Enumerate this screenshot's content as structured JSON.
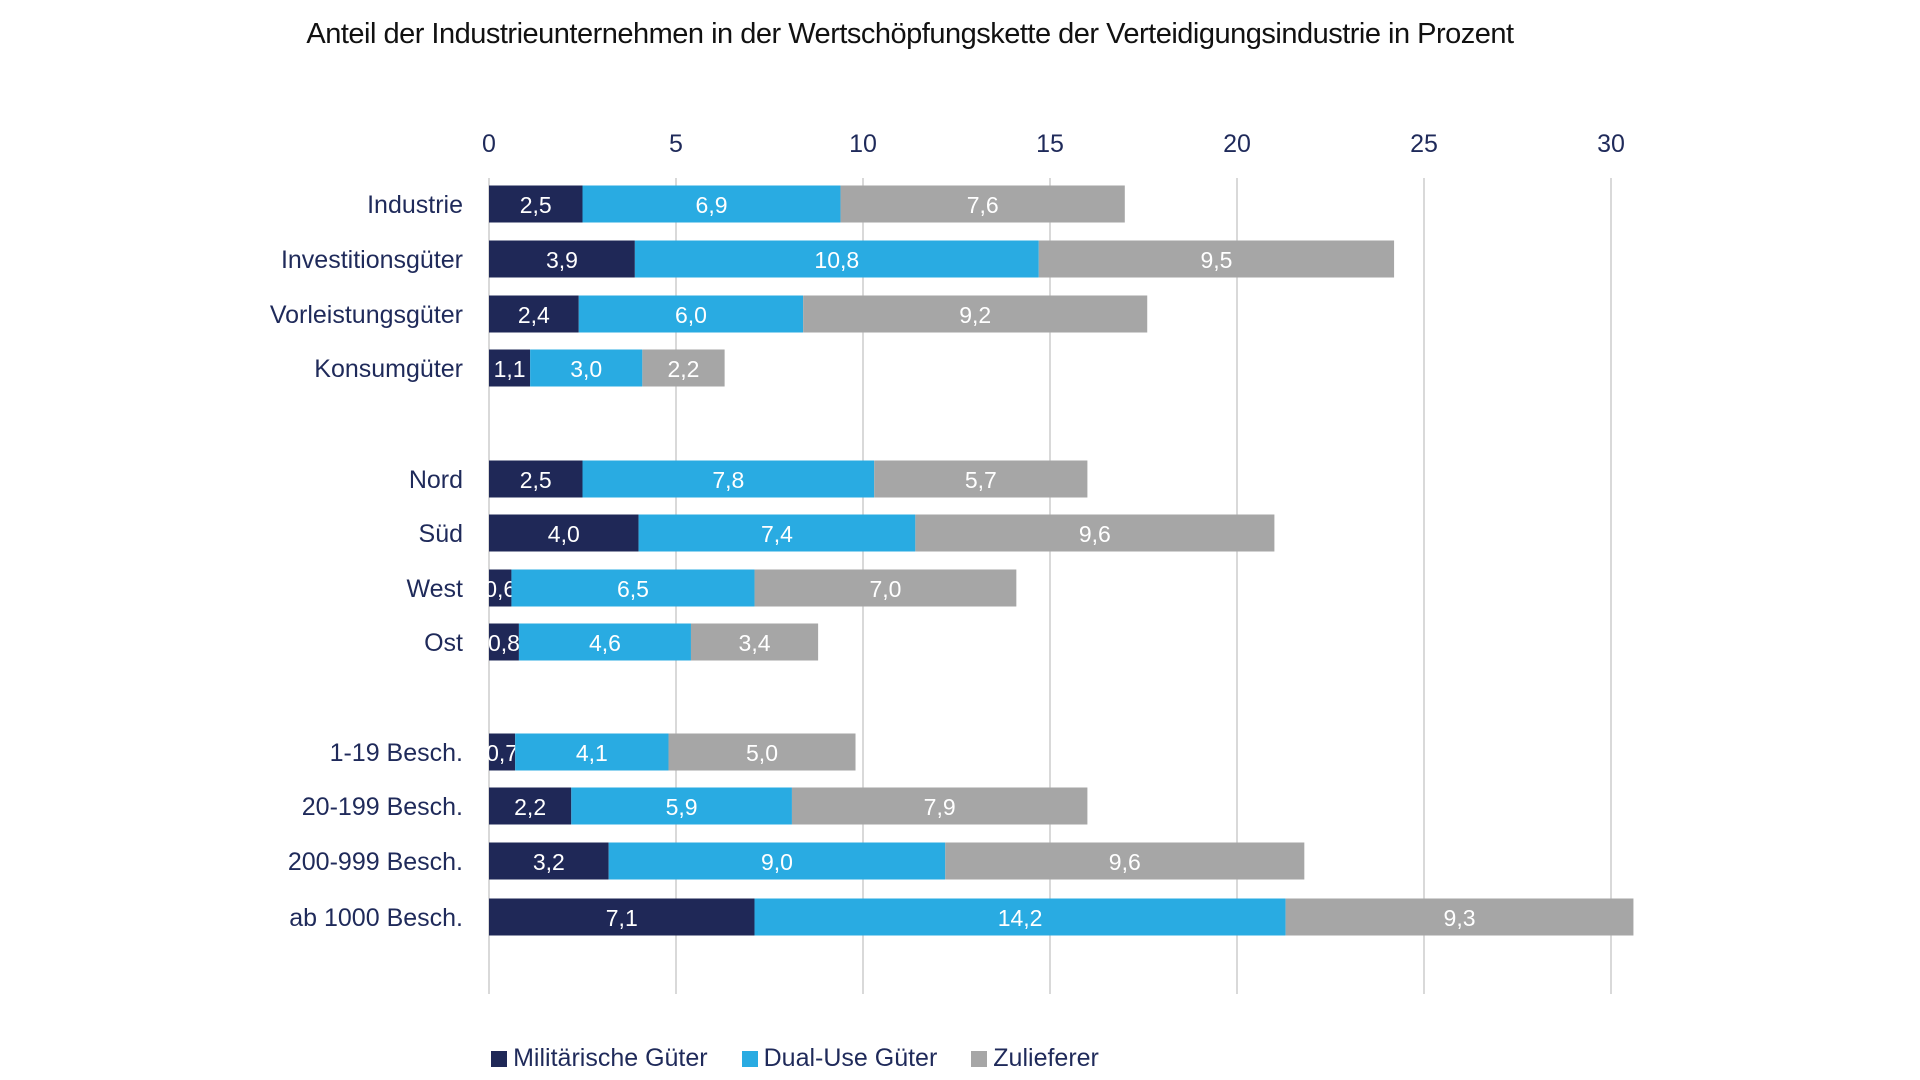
{
  "chart_data": {
    "type": "bar",
    "orientation": "horizontal",
    "stacked": true,
    "title": "Anteil der Industrieunternehmen in der Wertschöpfungskette der Verteidigungsindustrie in Prozent",
    "categories": [
      "Industrie",
      "Investitionsgüter",
      "Vorleistungsgüter",
      "Konsumgüter",
      "Nord",
      "Süd",
      "West",
      "Ost",
      "1-19 Besch.",
      "20-199 Besch.",
      "200-999 Besch.",
      "ab 1000 Besch."
    ],
    "groups": [
      [
        0,
        1,
        2,
        3
      ],
      [
        4,
        5,
        6,
        7
      ],
      [
        8,
        9,
        10,
        11
      ]
    ],
    "series": [
      {
        "name": "Militärische Güter",
        "color": "#1f2857",
        "values": [
          2.5,
          3.9,
          2.4,
          1.1,
          2.5,
          4.0,
          0.6,
          0.8,
          0.7,
          2.2,
          3.2,
          7.1
        ]
      },
      {
        "name": "Dual-Use Güter",
        "color": "#29abe2",
        "values": [
          6.9,
          10.8,
          6.0,
          3.0,
          7.8,
          7.4,
          6.5,
          4.6,
          4.1,
          5.9,
          9.0,
          14.2
        ]
      },
      {
        "name": "Zulieferer",
        "color": "#a6a6a6",
        "values": [
          7.6,
          9.5,
          9.2,
          2.2,
          5.7,
          9.6,
          7.0,
          3.4,
          5.0,
          7.9,
          9.6,
          9.3
        ]
      }
    ],
    "xlim": [
      0,
      30
    ],
    "xticks": [
      0,
      5,
      10,
      15,
      20,
      25,
      30
    ],
    "axis_position": "top",
    "grid": true,
    "legend_position": "bottom",
    "data_labels": true,
    "decimal_separator": ","
  }
}
